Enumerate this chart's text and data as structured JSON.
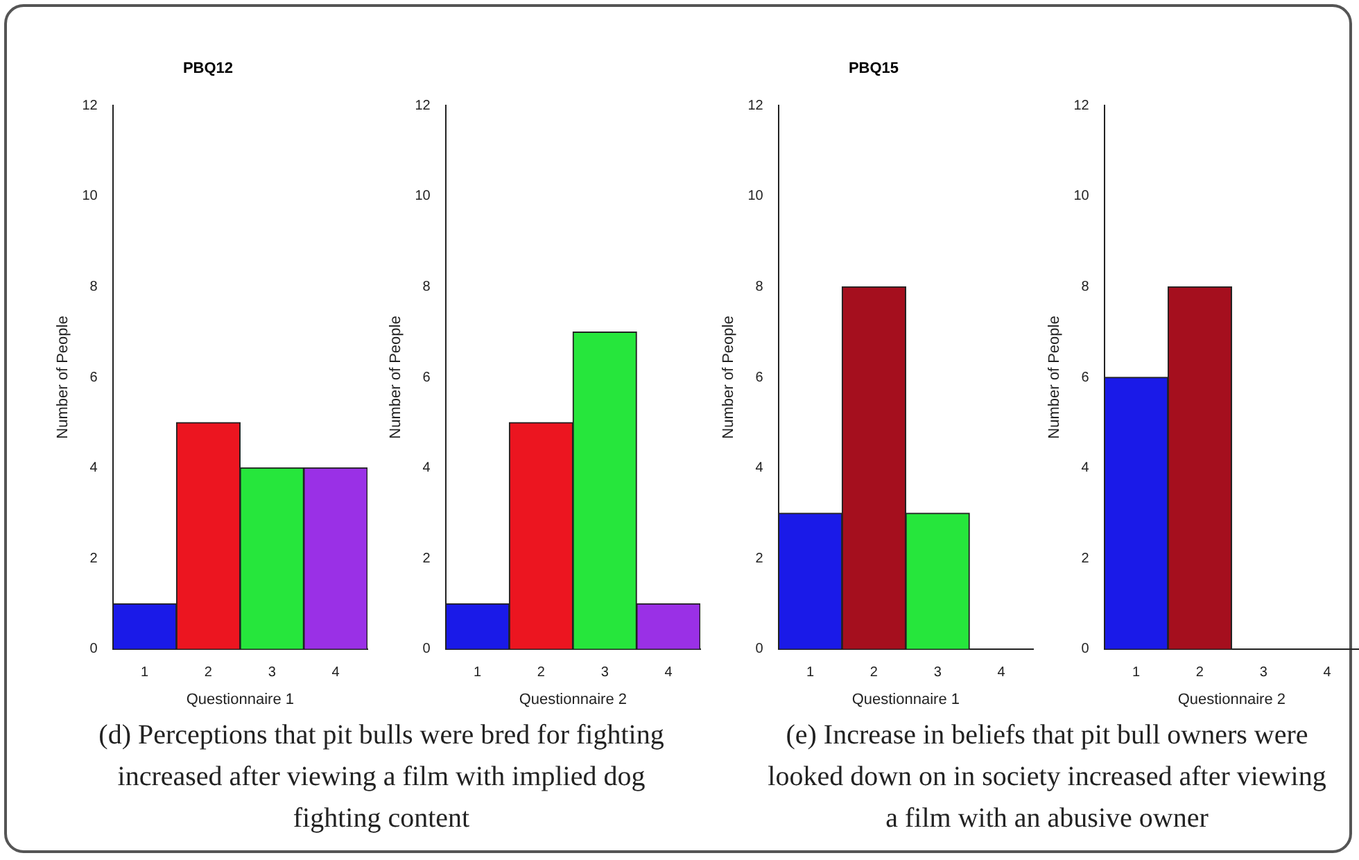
{
  "chart_data": [
    {
      "type": "bar",
      "title": "PBQ12",
      "xlabel": "Questionnaire 1",
      "ylabel": "Number of People",
      "categories": [
        "1",
        "2",
        "3",
        "4"
      ],
      "values": [
        1,
        5,
        4,
        4
      ],
      "colors": [
        "#1a1ae8",
        "#ec1520",
        "#26e63c",
        "#9a30e6"
      ],
      "ylim": [
        0,
        12
      ],
      "yticks": [
        0,
        2,
        4,
        6,
        8,
        10,
        12
      ],
      "grid": false,
      "annotations": [
        "(d) Perceptions that pit bulls were bred for fighting increased after viewing a film with implied dog fighting content"
      ]
    },
    {
      "type": "bar",
      "xlabel": "Questionnaire 2",
      "ylabel": "Number of People",
      "categories": [
        "1",
        "2",
        "3",
        "4"
      ],
      "values": [
        1,
        5,
        7,
        1
      ],
      "colors": [
        "#1a1ae8",
        "#ec1520",
        "#26e63c",
        "#9a30e6"
      ],
      "ylim": [
        0,
        12
      ],
      "yticks": [
        0,
        2,
        4,
        6,
        8,
        10,
        12
      ],
      "grid": false
    },
    {
      "type": "bar",
      "title": "PBQ15",
      "xlabel": "Questionnaire 1",
      "ylabel": "Number of People",
      "categories": [
        "1",
        "2",
        "3",
        "4"
      ],
      "values": [
        3,
        8,
        3,
        0
      ],
      "colors": [
        "#1a1ae8",
        "#a50f1e",
        "#26e63c",
        "#9a30e6"
      ],
      "ylim": [
        0,
        12
      ],
      "yticks": [
        0,
        2,
        4,
        6,
        8,
        10,
        12
      ],
      "grid": false,
      "annotations": [
        "(e) Increase in beliefs that pit bull owners were looked down on in society increased after viewing a film with an abusive owner"
      ]
    },
    {
      "type": "bar",
      "xlabel": "Questionnaire 2",
      "ylabel": "Number of People",
      "categories": [
        "1",
        "2",
        "3",
        "4"
      ],
      "values": [
        6,
        8,
        0,
        0
      ],
      "colors": [
        "#1a1ae8",
        "#a50f1e",
        "#26e63c",
        "#9a30e6"
      ],
      "ylim": [
        0,
        12
      ],
      "yticks": [
        0,
        2,
        4,
        6,
        8,
        10,
        12
      ],
      "grid": false
    }
  ]
}
